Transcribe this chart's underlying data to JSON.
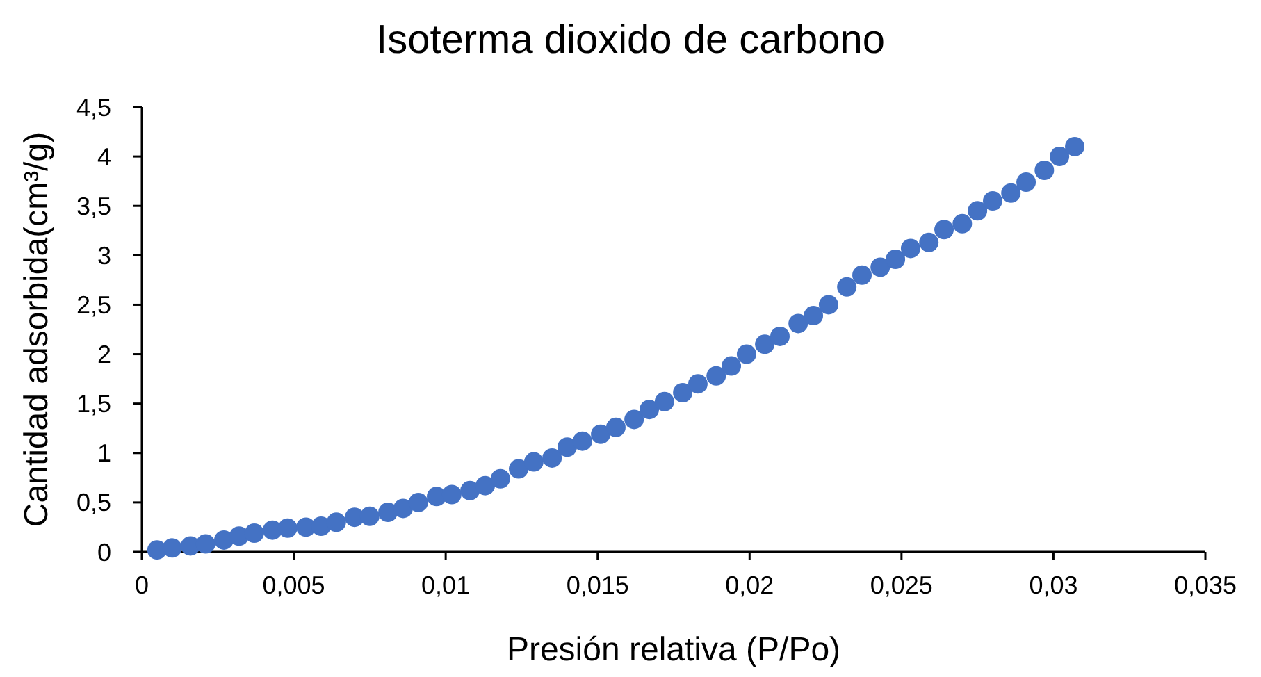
{
  "chart_data": {
    "type": "scatter",
    "title": "Isoterma dioxido de carbono",
    "xlabel": "Presión relativa (P/Po)",
    "ylabel": "Cantidad adsorbida(cm³/g)",
    "x": [
      0.0005,
      0.001,
      0.0016,
      0.0021,
      0.0027,
      0.0032,
      0.0037,
      0.0043,
      0.0048,
      0.0054,
      0.0059,
      0.0064,
      0.007,
      0.0075,
      0.0081,
      0.0086,
      0.0091,
      0.0097,
      0.0102,
      0.0108,
      0.0113,
      0.0118,
      0.0124,
      0.0129,
      0.0135,
      0.014,
      0.0145,
      0.0151,
      0.0156,
      0.0162,
      0.0167,
      0.0172,
      0.0178,
      0.0183,
      0.0189,
      0.0194,
      0.0199,
      0.0205,
      0.021,
      0.0216,
      0.0221,
      0.0226,
      0.0232,
      0.0237,
      0.0243,
      0.0248,
      0.0253,
      0.0259,
      0.0264,
      0.027,
      0.0275,
      0.028,
      0.0286,
      0.0291,
      0.0297,
      0.0302,
      0.0307
    ],
    "series": [
      {
        "color": "#4472c4",
        "values": [
          0.02,
          0.04,
          0.06,
          0.08,
          0.12,
          0.16,
          0.19,
          0.22,
          0.24,
          0.25,
          0.26,
          0.3,
          0.35,
          0.36,
          0.4,
          0.44,
          0.5,
          0.56,
          0.58,
          0.62,
          0.67,
          0.74,
          0.84,
          0.91,
          0.95,
          1.06,
          1.12,
          1.19,
          1.26,
          1.34,
          1.44,
          1.52,
          1.61,
          1.7,
          1.78,
          1.88,
          2.0,
          2.1,
          2.18,
          2.31,
          2.39,
          2.5,
          2.68,
          2.8,
          2.88,
          2.96,
          3.07,
          3.13,
          3.26,
          3.32,
          3.45,
          3.55,
          3.63,
          3.74,
          3.86,
          4.0,
          4.1
        ]
      }
    ],
    "xlim": [
      0,
      0.035
    ],
    "xticks": [
      {
        "value": 0,
        "label": "0"
      },
      {
        "value": 0.005,
        "label": "0,005"
      },
      {
        "value": 0.01,
        "label": "0,01"
      },
      {
        "value": 0.015,
        "label": "0,015"
      },
      {
        "value": 0.02,
        "label": "0,02"
      },
      {
        "value": 0.025,
        "label": "0,025"
      },
      {
        "value": 0.03,
        "label": "0,03"
      },
      {
        "value": 0.035,
        "label": "0,035"
      }
    ],
    "ylim": [
      0,
      4.5
    ],
    "yticks": [
      {
        "value": 0,
        "label": "0"
      },
      {
        "value": 0.5,
        "label": "0,5"
      },
      {
        "value": 1,
        "label": "1"
      },
      {
        "value": 1.5,
        "label": "1,5"
      },
      {
        "value": 2,
        "label": "2"
      },
      {
        "value": 2.5,
        "label": "2,5"
      },
      {
        "value": 3,
        "label": "3"
      },
      {
        "value": 3.5,
        "label": "3,5"
      },
      {
        "value": 4,
        "label": "4"
      },
      {
        "value": 4.5,
        "label": "4,5"
      }
    ],
    "marker": "circle"
  }
}
